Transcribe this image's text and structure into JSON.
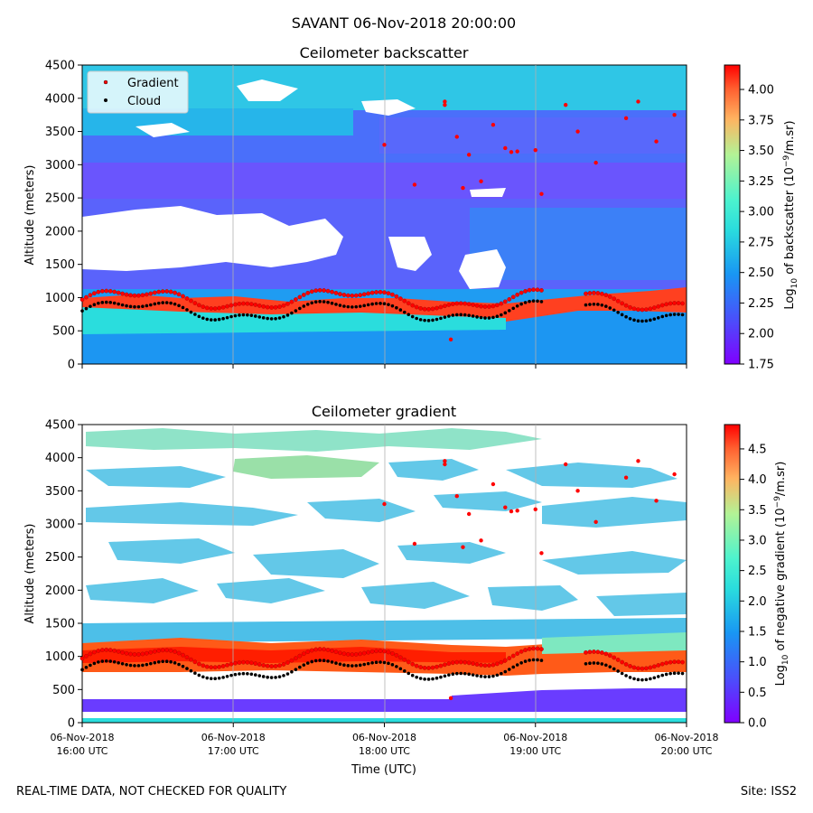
{
  "suptitle": "SAVANT 06-Nov-2018 20:00:00",
  "footer_left": "REAL-TIME DATA, NOT CHECKED FOR QUALITY",
  "footer_right": "Site: ISS2",
  "chart_data": [
    {
      "type": "heatmap",
      "title": "Ceilometer backscatter",
      "xlabel": "",
      "ylabel": "Altitude (meters)",
      "ylim": [
        0,
        4500
      ],
      "yticks": [
        0,
        500,
        1000,
        1500,
        2000,
        2500,
        3000,
        3500,
        4000,
        4500
      ],
      "xlim": [
        "16:00",
        "20:00"
      ],
      "xticks": [
        "16:00",
        "17:00",
        "18:00",
        "19:00",
        "20:00"
      ],
      "colorbar": {
        "label_pre": "Log",
        "label_sub": "10",
        "label_mid": " of backscatter (10",
        "label_sup": "−9",
        "label_post": "/m.sr)",
        "range": [
          1.75,
          4.2
        ],
        "ticks": [
          "1.75",
          "2.00",
          "2.25",
          "2.50",
          "2.75",
          "3.00",
          "3.25",
          "3.50",
          "3.75",
          "4.00"
        ]
      },
      "legend": {
        "location": "top-left",
        "entries": [
          {
            "label": "Gradient",
            "color": "#ff0000"
          },
          {
            "label": "Cloud",
            "color": "#000000"
          }
        ]
      },
      "description": "Boundary layer near 800-1000 m; white gaps indicate no data"
    },
    {
      "type": "heatmap",
      "title": "Ceilometer gradient",
      "xlabel": "Time (UTC)",
      "ylabel": "Altitude (meters)",
      "ylim": [
        0,
        4500
      ],
      "yticks": [
        0,
        500,
        1000,
        1500,
        2000,
        2500,
        3000,
        3500,
        4000,
        4500
      ],
      "xlim": [
        "16:00",
        "20:00"
      ],
      "xticks": [
        "16:00",
        "17:00",
        "18:00",
        "19:00",
        "20:00"
      ],
      "xticklabels": [
        [
          "06-Nov-2018",
          "16:00 UTC"
        ],
        [
          "06-Nov-2018",
          "17:00 UTC"
        ],
        [
          "06-Nov-2018",
          "18:00 UTC"
        ],
        [
          "06-Nov-2018",
          "19:00 UTC"
        ],
        [
          "06-Nov-2018",
          "20:00 UTC"
        ]
      ],
      "colorbar": {
        "label_pre": "Log",
        "label_sub": "10",
        "label_mid": " of negative gradient (10",
        "label_sup": "−9",
        "label_post": "/m.sr)",
        "range": [
          0.0,
          4.9
        ],
        "ticks": [
          "0.0",
          "0.5",
          "1.0",
          "1.5",
          "2.0",
          "2.5",
          "3.0",
          "3.5",
          "4.0",
          "4.5"
        ]
      }
    }
  ]
}
